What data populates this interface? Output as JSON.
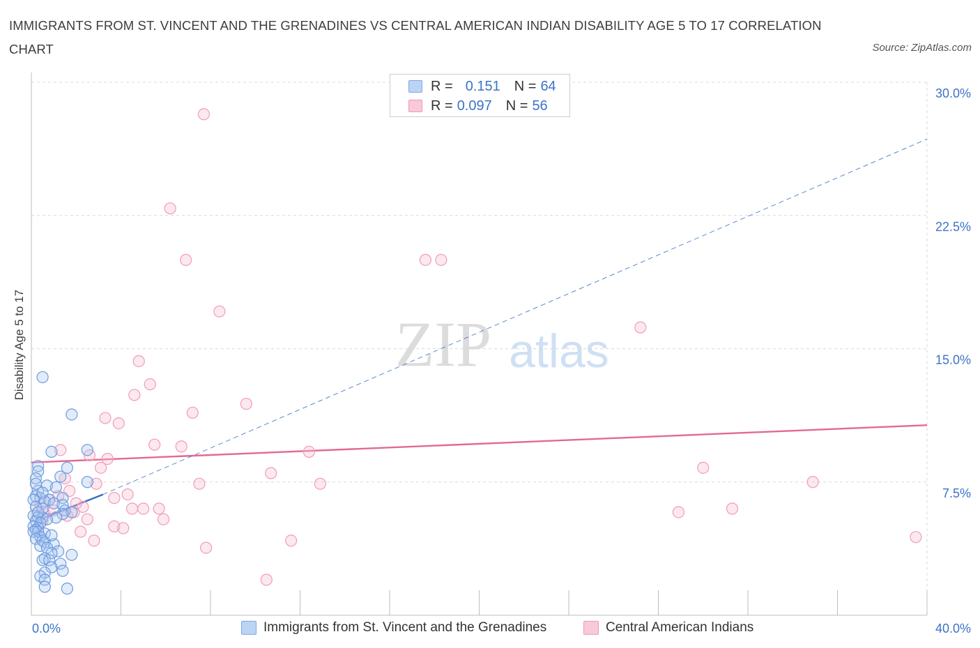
{
  "title": "IMMIGRANTS FROM ST. VINCENT AND THE GRENADINES VS CENTRAL AMERICAN INDIAN DISABILITY AGE 5 TO 17 CORRELATION CHART",
  "source": "Source: ZipAtlas.com",
  "watermark": {
    "zip": "ZIP",
    "atlas": "atlas"
  },
  "legend": {
    "r_label": "R =",
    "n_label": "N =",
    "rows": [
      {
        "r": "0.151",
        "n": "64",
        "color": "#a9c6ef"
      },
      {
        "r": "0.097",
        "n": "56",
        "color": "#f5b6cb"
      }
    ]
  },
  "chart_data": {
    "type": "scatter",
    "title": "IMMIGRANTS FROM ST. VINCENT AND THE GRENADINES VS CENTRAL AMERICAN INDIAN DISABILITY AGE 5 TO 17 CORRELATION CHART",
    "xlabel": "",
    "ylabel": "Disability Age 5 to 17",
    "xlim": [
      0,
      40
    ],
    "ylim": [
      0,
      30
    ],
    "x_ticks": [
      "0.0%",
      "40.0%"
    ],
    "y_ticks": [
      "7.5%",
      "15.0%",
      "22.5%",
      "30.0%"
    ],
    "grid": true,
    "legend_position": "top-center",
    "series": [
      {
        "name": "Immigrants from St. Vincent and the Grenadines",
        "color": "#6b9be0",
        "line_color": "#2f6cc9",
        "trend_solid": [
          [
            0.2,
            5.3
          ],
          [
            3.2,
            6.8
          ]
        ],
        "trend_dashed": [
          [
            3.2,
            6.8
          ],
          [
            40.0,
            26.8
          ]
        ],
        "points": [
          [
            0.5,
            13.4
          ],
          [
            1.8,
            11.3
          ],
          [
            2.5,
            9.3
          ],
          [
            0.9,
            9.2
          ],
          [
            0.3,
            8.4
          ],
          [
            1.6,
            8.3
          ],
          [
            0.3,
            8.1
          ],
          [
            1.3,
            7.8
          ],
          [
            0.2,
            7.7
          ],
          [
            2.5,
            7.5
          ],
          [
            0.7,
            7.3
          ],
          [
            1.1,
            7.2
          ],
          [
            0.3,
            7.0
          ],
          [
            0.2,
            6.7
          ],
          [
            0.4,
            6.6
          ],
          [
            1.4,
            6.6
          ],
          [
            0.1,
            6.5
          ],
          [
            0.8,
            6.5
          ],
          [
            0.6,
            6.4
          ],
          [
            1.0,
            6.3
          ],
          [
            1.4,
            6.2
          ],
          [
            0.2,
            6.1
          ],
          [
            0.5,
            6.0
          ],
          [
            1.5,
            5.9
          ],
          [
            1.8,
            5.8
          ],
          [
            1.4,
            5.7
          ],
          [
            0.1,
            5.6
          ],
          [
            0.3,
            5.5
          ],
          [
            0.5,
            5.5
          ],
          [
            1.1,
            5.5
          ],
          [
            0.7,
            5.4
          ],
          [
            0.2,
            5.3
          ],
          [
            0.4,
            5.2
          ],
          [
            0.1,
            5.0
          ],
          [
            0.3,
            4.9
          ],
          [
            0.2,
            4.8
          ],
          [
            0.3,
            4.7
          ],
          [
            0.1,
            4.7
          ],
          [
            0.6,
            4.6
          ],
          [
            0.4,
            4.4
          ],
          [
            0.2,
            4.3
          ],
          [
            0.5,
            4.2
          ],
          [
            0.6,
            4.1
          ],
          [
            1.0,
            4.0
          ],
          [
            0.4,
            3.9
          ],
          [
            0.7,
            3.8
          ],
          [
            1.2,
            3.6
          ],
          [
            0.9,
            3.5
          ],
          [
            1.8,
            3.4
          ],
          [
            0.6,
            3.2
          ],
          [
            0.5,
            3.1
          ],
          [
            0.8,
            3.1
          ],
          [
            1.3,
            2.9
          ],
          [
            0.9,
            2.7
          ],
          [
            1.4,
            2.5
          ],
          [
            0.6,
            2.4
          ],
          [
            0.4,
            2.2
          ],
          [
            0.6,
            2.0
          ],
          [
            0.6,
            1.6
          ],
          [
            1.6,
            1.5
          ],
          [
            0.2,
            7.4
          ],
          [
            0.5,
            6.9
          ],
          [
            0.3,
            5.8
          ],
          [
            0.9,
            4.5
          ]
        ]
      },
      {
        "name": "Central American Indians",
        "color": "#f19bb8",
        "line_color": "#e46893",
        "trend_solid": [
          [
            0.0,
            8.6
          ],
          [
            40.0,
            10.7
          ]
        ],
        "points": [
          [
            7.7,
            28.2
          ],
          [
            6.2,
            22.9
          ],
          [
            6.9,
            20.0
          ],
          [
            17.6,
            20.0
          ],
          [
            18.3,
            20.0
          ],
          [
            8.4,
            17.1
          ],
          [
            27.2,
            16.2
          ],
          [
            4.8,
            14.3
          ],
          [
            5.3,
            13.0
          ],
          [
            4.6,
            12.4
          ],
          [
            9.6,
            11.9
          ],
          [
            7.2,
            11.4
          ],
          [
            3.3,
            11.1
          ],
          [
            3.9,
            10.8
          ],
          [
            5.5,
            9.6
          ],
          [
            6.7,
            9.5
          ],
          [
            1.3,
            9.3
          ],
          [
            12.4,
            9.2
          ],
          [
            2.6,
            9.0
          ],
          [
            3.4,
            8.8
          ],
          [
            30.0,
            8.3
          ],
          [
            3.1,
            8.3
          ],
          [
            10.7,
            8.0
          ],
          [
            2.9,
            7.4
          ],
          [
            7.5,
            7.4
          ],
          [
            12.9,
            7.4
          ],
          [
            34.9,
            7.5
          ],
          [
            1.5,
            7.7
          ],
          [
            1.7,
            7.0
          ],
          [
            4.3,
            6.8
          ],
          [
            3.7,
            6.6
          ],
          [
            1.2,
            6.7
          ],
          [
            0.8,
            6.5
          ],
          [
            2.3,
            6.1
          ],
          [
            4.5,
            6.0
          ],
          [
            5.0,
            6.0
          ],
          [
            5.7,
            6.0
          ],
          [
            31.3,
            6.0
          ],
          [
            28.9,
            5.8
          ],
          [
            1.9,
            5.8
          ],
          [
            0.6,
            5.7
          ],
          [
            2.5,
            5.4
          ],
          [
            5.9,
            5.4
          ],
          [
            0.5,
            5.3
          ],
          [
            3.7,
            5.0
          ],
          [
            4.1,
            4.9
          ],
          [
            2.2,
            4.7
          ],
          [
            39.5,
            4.4
          ],
          [
            2.8,
            4.2
          ],
          [
            11.6,
            4.2
          ],
          [
            7.8,
            3.8
          ],
          [
            10.5,
            2.0
          ],
          [
            0.4,
            6.2
          ],
          [
            1.0,
            5.9
          ],
          [
            2.0,
            6.3
          ],
          [
            1.6,
            5.6
          ]
        ]
      }
    ]
  },
  "bottom_legend": [
    {
      "label": "Immigrants from St. Vincent and the Grenadines"
    },
    {
      "label": "Central American Indians"
    }
  ]
}
